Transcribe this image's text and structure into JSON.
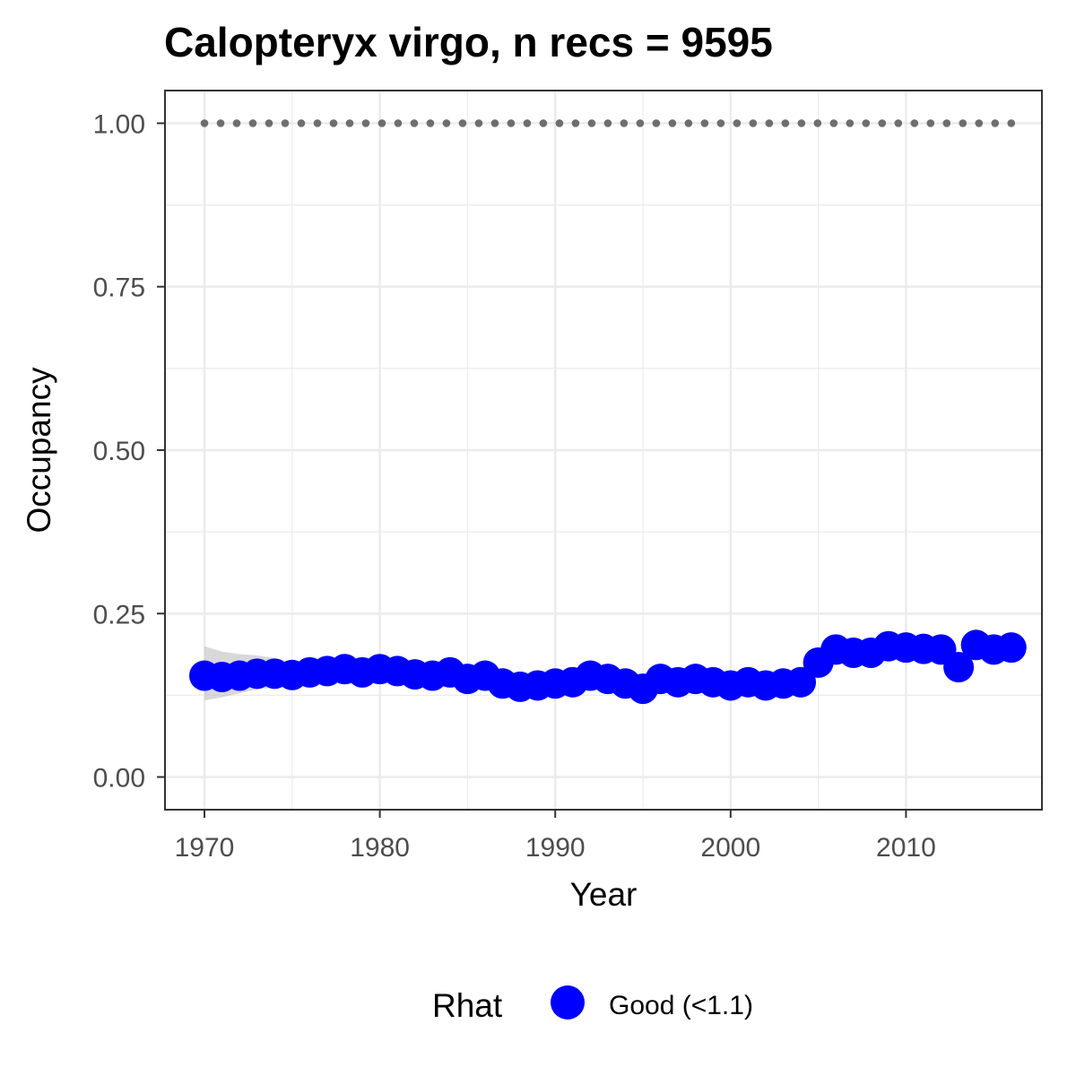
{
  "chart_data": {
    "type": "line",
    "title": "Calopteryx virgo, n recs = 9595",
    "xlabel": "Year",
    "ylabel": "Occupancy",
    "xlim": [
      1967.75,
      2017.75
    ],
    "ylim": [
      -0.05,
      1.05
    ],
    "x_ticks": [
      1970,
      1980,
      1990,
      2000,
      2010
    ],
    "x_tick_labels": [
      "1970",
      "1980",
      "1990",
      "2000",
      "2010"
    ],
    "y_ticks": [
      0,
      0.25,
      0.5,
      0.75,
      1.0
    ],
    "y_tick_labels": [
      "0.00",
      "0.25",
      "0.50",
      "0.75",
      "1.00"
    ],
    "grid": true,
    "legend": {
      "title": "Rhat",
      "position": "bottom",
      "entries": [
        {
          "label": "Good (<1.1)",
          "color": "#0000ff"
        }
      ]
    },
    "colors": {
      "series": "#0000ff",
      "ribbon": "#bebebe",
      "reference": "#6e6e6e"
    },
    "reference_line": {
      "name": "upper bound",
      "y": 1.0,
      "style": "dotted"
    },
    "x": [
      1970,
      1971,
      1972,
      1973,
      1974,
      1975,
      1976,
      1977,
      1978,
      1979,
      1980,
      1981,
      1982,
      1983,
      1984,
      1985,
      1986,
      1987,
      1988,
      1989,
      1990,
      1991,
      1992,
      1993,
      1994,
      1995,
      1996,
      1997,
      1998,
      1999,
      2000,
      2001,
      2002,
      2003,
      2004,
      2005,
      2006,
      2007,
      2008,
      2009,
      2010,
      2011,
      2012,
      2013,
      2014,
      2015,
      2016
    ],
    "series": [
      {
        "name": "Good (<1.1)",
        "values": [
          0.155,
          0.153,
          0.155,
          0.158,
          0.158,
          0.156,
          0.16,
          0.162,
          0.165,
          0.16,
          0.165,
          0.162,
          0.157,
          0.155,
          0.16,
          0.15,
          0.155,
          0.143,
          0.138,
          0.14,
          0.143,
          0.145,
          0.155,
          0.15,
          0.143,
          0.135,
          0.15,
          0.145,
          0.15,
          0.145,
          0.14,
          0.145,
          0.14,
          0.143,
          0.145,
          0.175,
          0.195,
          0.19,
          0.19,
          0.2,
          0.198,
          0.196,
          0.195,
          0.168,
          0.202,
          0.195,
          0.198
        ],
        "lower": [
          0.117,
          0.122,
          0.128,
          0.134,
          0.137,
          0.138,
          0.143,
          0.146,
          0.15,
          0.146,
          0.151,
          0.149,
          0.144,
          0.142,
          0.147,
          0.138,
          0.143,
          0.131,
          0.127,
          0.129,
          0.132,
          0.134,
          0.144,
          0.139,
          0.132,
          0.124,
          0.139,
          0.134,
          0.139,
          0.134,
          0.129,
          0.134,
          0.129,
          0.132,
          0.134,
          0.164,
          0.184,
          0.179,
          0.179,
          0.189,
          0.187,
          0.185,
          0.184,
          0.157,
          0.191,
          0.184,
          0.187
        ],
        "upper": [
          0.2,
          0.192,
          0.188,
          0.186,
          0.182,
          0.176,
          0.178,
          0.178,
          0.18,
          0.175,
          0.179,
          0.175,
          0.17,
          0.168,
          0.173,
          0.163,
          0.168,
          0.155,
          0.15,
          0.152,
          0.155,
          0.157,
          0.167,
          0.162,
          0.155,
          0.147,
          0.162,
          0.157,
          0.162,
          0.157,
          0.152,
          0.157,
          0.152,
          0.155,
          0.157,
          0.187,
          0.207,
          0.202,
          0.202,
          0.212,
          0.21,
          0.208,
          0.207,
          0.18,
          0.214,
          0.207,
          0.21
        ]
      }
    ]
  }
}
